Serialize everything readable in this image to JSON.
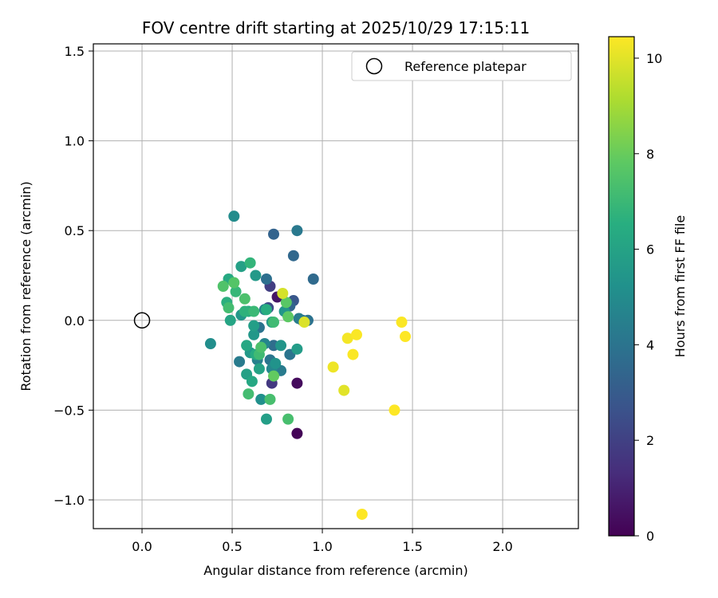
{
  "chart_data": {
    "type": "scatter",
    "title": "FOV centre drift starting at 2025/10/29 17:15:11",
    "xlabel": "Angular distance from reference (arcmin)",
    "ylabel": "Rotation from reference (arcmin)",
    "xlim": [
      -0.27,
      2.42
    ],
    "ylim": [
      -1.16,
      1.54
    ],
    "xticks": [
      0.0,
      0.5,
      1.0,
      1.5,
      2.0
    ],
    "xtick_labels": [
      "0.0",
      "0.5",
      "1.0",
      "1.5",
      "2.0"
    ],
    "yticks": [
      -1.0,
      -0.5,
      0.0,
      0.5,
      1.0,
      1.5
    ],
    "ytick_labels": [
      "−1.0",
      "−0.5",
      "0.0",
      "0.5",
      "1.0",
      "1.5"
    ],
    "grid": true,
    "colormap": "viridis",
    "colorbar": {
      "label": "Hours from first FF file",
      "range": [
        0,
        10.45
      ],
      "ticks": [
        0,
        2,
        4,
        6,
        8,
        10
      ],
      "tick_labels": [
        "0",
        "2",
        "4",
        "6",
        "8",
        "10"
      ]
    },
    "legend": {
      "position": "top-right",
      "entries": [
        {
          "label": "Reference platepar",
          "marker": "hollow-circle"
        }
      ]
    },
    "reference_point": {
      "x": 0.0,
      "y": 0.0
    },
    "points": [
      {
        "x": 0.86,
        "y": -0.63,
        "h": 0.1
      },
      {
        "x": 0.86,
        "y": -0.35,
        "h": 0.3
      },
      {
        "x": 0.75,
        "y": 0.13,
        "h": 0.6
      },
      {
        "x": 0.72,
        "y": -0.35,
        "h": 1.7
      },
      {
        "x": 0.71,
        "y": 0.19,
        "h": 1.9
      },
      {
        "x": 0.7,
        "y": 0.07,
        "h": 2.3
      },
      {
        "x": 0.84,
        "y": 0.11,
        "h": 2.8
      },
      {
        "x": 0.73,
        "y": 0.48,
        "h": 3.3
      },
      {
        "x": 0.82,
        "y": 0.08,
        "h": 3.4
      },
      {
        "x": 0.84,
        "y": 0.36,
        "h": 3.5
      },
      {
        "x": 0.95,
        "y": 0.23,
        "h": 3.6
      },
      {
        "x": 0.73,
        "y": -0.14,
        "h": 3.7
      },
      {
        "x": 0.69,
        "y": 0.23,
        "h": 3.8
      },
      {
        "x": 0.89,
        "y": 0.0,
        "h": 3.8
      },
      {
        "x": 0.92,
        "y": 0.0,
        "h": 3.9
      },
      {
        "x": 0.82,
        "y": -0.19,
        "h": 4.0
      },
      {
        "x": 0.65,
        "y": -0.04,
        "h": 4.0
      },
      {
        "x": 0.71,
        "y": -0.22,
        "h": 4.1
      },
      {
        "x": 0.86,
        "y": 0.5,
        "h": 4.2
      },
      {
        "x": 0.77,
        "y": -0.28,
        "h": 4.3
      },
      {
        "x": 0.54,
        "y": -0.23,
        "h": 4.3
      },
      {
        "x": 0.87,
        "y": 0.01,
        "h": 4.4
      },
      {
        "x": 0.64,
        "y": -0.22,
        "h": 4.5
      },
      {
        "x": 0.68,
        "y": 0.06,
        "h": 4.6
      },
      {
        "x": 0.68,
        "y": -0.13,
        "h": 4.7
      },
      {
        "x": 0.72,
        "y": -0.27,
        "h": 4.8
      },
      {
        "x": 0.51,
        "y": 0.58,
        "h": 5.0
      },
      {
        "x": 0.38,
        "y": -0.13,
        "h": 5.1
      },
      {
        "x": 0.66,
        "y": -0.44,
        "h": 5.2
      },
      {
        "x": 0.74,
        "y": -0.24,
        "h": 5.3
      },
      {
        "x": 0.77,
        "y": -0.14,
        "h": 5.4
      },
      {
        "x": 0.79,
        "y": 0.05,
        "h": 5.4
      },
      {
        "x": 0.55,
        "y": 0.03,
        "h": 5.5
      },
      {
        "x": 0.62,
        "y": -0.08,
        "h": 5.5
      },
      {
        "x": 0.6,
        "y": -0.18,
        "h": 5.6
      },
      {
        "x": 0.63,
        "y": 0.25,
        "h": 5.6
      },
      {
        "x": 0.72,
        "y": -0.01,
        "h": 5.7
      },
      {
        "x": 0.86,
        "y": -0.16,
        "h": 5.7
      },
      {
        "x": 0.69,
        "y": -0.55,
        "h": 5.8
      },
      {
        "x": 0.62,
        "y": -0.03,
        "h": 5.8
      },
      {
        "x": 0.58,
        "y": -0.3,
        "h": 5.9
      },
      {
        "x": 0.55,
        "y": 0.3,
        "h": 5.9
      },
      {
        "x": 0.65,
        "y": -0.27,
        "h": 6.0
      },
      {
        "x": 0.49,
        "y": 0.0,
        "h": 6.1
      },
      {
        "x": 0.61,
        "y": -0.34,
        "h": 6.2
      },
      {
        "x": 0.58,
        "y": -0.14,
        "h": 6.2
      },
      {
        "x": 0.48,
        "y": 0.23,
        "h": 6.3
      },
      {
        "x": 0.63,
        "y": -0.19,
        "h": 6.4
      },
      {
        "x": 0.59,
        "y": 0.05,
        "h": 6.4
      },
      {
        "x": 0.69,
        "y": 0.06,
        "h": 6.5
      },
      {
        "x": 0.47,
        "y": 0.1,
        "h": 6.6
      },
      {
        "x": 0.57,
        "y": 0.05,
        "h": 6.7
      },
      {
        "x": 0.6,
        "y": 0.32,
        "h": 6.8
      },
      {
        "x": 0.52,
        "y": 0.16,
        "h": 6.9
      },
      {
        "x": 0.62,
        "y": 0.05,
        "h": 7.0
      },
      {
        "x": 0.65,
        "y": -0.19,
        "h": 7.1
      },
      {
        "x": 0.73,
        "y": -0.01,
        "h": 7.1
      },
      {
        "x": 0.48,
        "y": 0.07,
        "h": 7.2
      },
      {
        "x": 0.59,
        "y": -0.41,
        "h": 7.2
      },
      {
        "x": 0.71,
        "y": -0.44,
        "h": 7.3
      },
      {
        "x": 0.81,
        "y": -0.55,
        "h": 7.3
      },
      {
        "x": 0.57,
        "y": 0.12,
        "h": 7.4
      },
      {
        "x": 0.66,
        "y": -0.15,
        "h": 7.4
      },
      {
        "x": 0.45,
        "y": 0.19,
        "h": 7.5
      },
      {
        "x": 0.51,
        "y": 0.21,
        "h": 7.6
      },
      {
        "x": 0.8,
        "y": 0.1,
        "h": 7.7
      },
      {
        "x": 0.81,
        "y": 0.02,
        "h": 7.8
      },
      {
        "x": 0.73,
        "y": -0.31,
        "h": 7.9
      },
      {
        "x": 0.78,
        "y": 0.15,
        "h": 9.8
      },
      {
        "x": 0.9,
        "y": -0.01,
        "h": 9.9
      },
      {
        "x": 1.12,
        "y": -0.39,
        "h": 10.0
      },
      {
        "x": 1.06,
        "y": -0.26,
        "h": 10.2
      },
      {
        "x": 1.14,
        "y": -0.1,
        "h": 10.3
      },
      {
        "x": 1.19,
        "y": -0.08,
        "h": 10.4
      },
      {
        "x": 1.17,
        "y": -0.19,
        "h": 10.4
      },
      {
        "x": 1.44,
        "y": -0.01,
        "h": 10.4
      },
      {
        "x": 1.46,
        "y": -0.09,
        "h": 10.45
      },
      {
        "x": 1.4,
        "y": -0.5,
        "h": 10.45
      },
      {
        "x": 1.22,
        "y": -1.08,
        "h": 10.45
      }
    ]
  }
}
